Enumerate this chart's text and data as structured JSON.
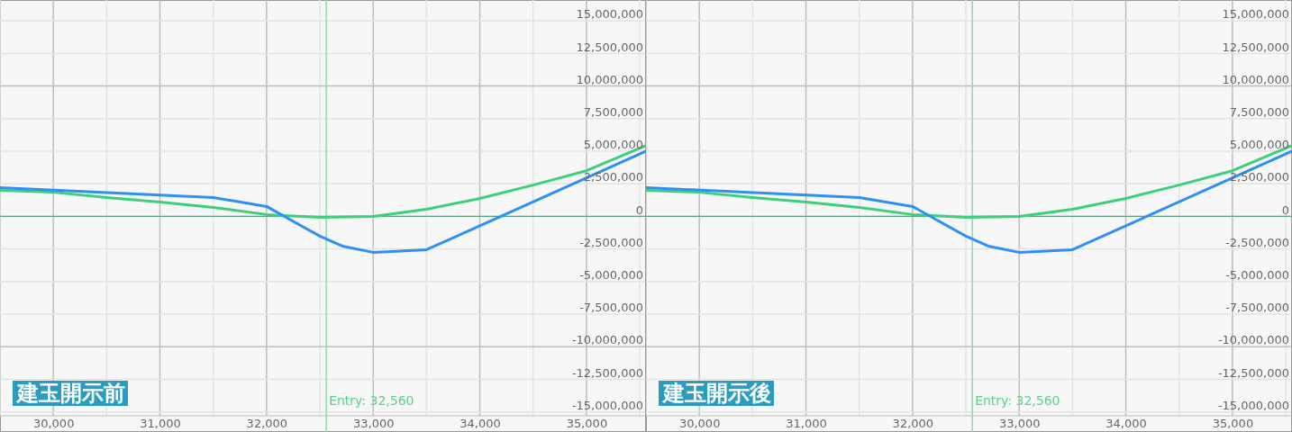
{
  "chart_data": [
    {
      "type": "line",
      "title": "建玉開示前",
      "xlim": [
        29500,
        35550
      ],
      "ylim": [
        -15300000,
        16600000
      ],
      "xticks": [
        {
          "value": 29500,
          "label": null
        },
        {
          "value": 30000,
          "label": "30,000"
        },
        {
          "value": 30500,
          "label": null
        },
        {
          "value": 31000,
          "label": "31,000"
        },
        {
          "value": 31500,
          "label": null
        },
        {
          "value": 32000,
          "label": "32,000"
        },
        {
          "value": 32500,
          "label": null
        },
        {
          "value": 33000,
          "label": "33,000"
        },
        {
          "value": 33500,
          "label": null
        },
        {
          "value": 34000,
          "label": "34,000"
        },
        {
          "value": 34500,
          "label": null
        },
        {
          "value": 35000,
          "label": "35,000"
        },
        {
          "value": 35500,
          "label": null
        }
      ],
      "yticks": [
        {
          "value": -15000000,
          "label": "-15,000,000"
        },
        {
          "value": -12500000,
          "label": "-12,500,000"
        },
        {
          "value": -10000000,
          "label": "-10,000,000"
        },
        {
          "value": -7500000,
          "label": "-7,500,000"
        },
        {
          "value": -5000000,
          "label": "-5,000,000"
        },
        {
          "value": -2500000,
          "label": "-2,500,000"
        },
        0,
        {
          "value": 2500000,
          "label": "2,500,000"
        },
        {
          "value": 5000000,
          "label": "5,000,000"
        },
        {
          "value": 7500000,
          "label": "7,500,000"
        },
        {
          "value": 10000000,
          "label": "10,000,000"
        },
        {
          "value": 12500000,
          "label": "12,500,000"
        },
        {
          "value": 15000000,
          "label": "15,000,000"
        }
      ],
      "grid": true,
      "ref_lines": [
        {
          "axis": "x",
          "value": 32560,
          "label": "Entry: 32,560",
          "color": "#8fdca8"
        },
        {
          "axis": "y",
          "value": 0,
          "color": "#5f9d7c"
        }
      ],
      "series": [
        {
          "color": "#3ecf7a",
          "x": [
            29500,
            30000,
            30500,
            31000,
            31500,
            32000,
            32500,
            33000,
            33500,
            34000,
            34500,
            35000,
            35550
          ],
          "values": [
            2000000,
            1850000,
            1450000,
            1100000,
            690000,
            140000,
            -70000,
            0,
            550000,
            1380000,
            2400000,
            3500000,
            5400000
          ]
        },
        {
          "color": "#2e90f5",
          "x": [
            29500,
            31500,
            32000,
            32500,
            32710,
            33000,
            33500,
            35550
          ],
          "values": [
            2200000,
            1450000,
            760000,
            -1520000,
            -2280000,
            -2760000,
            -2560000,
            4970000
          ]
        }
      ]
    },
    {
      "type": "line",
      "title": "建玉開示後",
      "xlim": [
        29500,
        35550
      ],
      "ylim": [
        -15300000,
        16600000
      ],
      "xticks": [
        {
          "value": 29500,
          "label": null
        },
        {
          "value": 30000,
          "label": "30,000"
        },
        {
          "value": 30500,
          "label": null
        },
        {
          "value": 31000,
          "label": "31,000"
        },
        {
          "value": 31500,
          "label": null
        },
        {
          "value": 32000,
          "label": "32,000"
        },
        {
          "value": 32500,
          "label": null
        },
        {
          "value": 33000,
          "label": "33,000"
        },
        {
          "value": 33500,
          "label": null
        },
        {
          "value": 34000,
          "label": "34,000"
        },
        {
          "value": 34500,
          "label": null
        },
        {
          "value": 35000,
          "label": "35,000"
        },
        {
          "value": 35500,
          "label": null
        }
      ],
      "yticks": [
        {
          "value": -15000000,
          "label": "-15,000,000"
        },
        {
          "value": -12500000,
          "label": "-12,500,000"
        },
        {
          "value": -10000000,
          "label": "-10,000,000"
        },
        {
          "value": -7500000,
          "label": "-7,500,000"
        },
        {
          "value": -5000000,
          "label": "-5,000,000"
        },
        {
          "value": -2500000,
          "label": "-2,500,000"
        },
        0,
        {
          "value": 2500000,
          "label": "2,500,000"
        },
        {
          "value": 5000000,
          "label": "5,000,000"
        },
        {
          "value": 7500000,
          "label": "7,500,000"
        },
        {
          "value": 10000000,
          "label": "10,000,000"
        },
        {
          "value": 12500000,
          "label": "12,500,000"
        },
        {
          "value": 15000000,
          "label": "15,000,000"
        }
      ],
      "grid": true,
      "ref_lines": [
        {
          "axis": "x",
          "value": 32560,
          "label": "Entry: 32,560",
          "color": "#8fdca8"
        },
        {
          "axis": "y",
          "value": 0,
          "color": "#5f9d7c"
        }
      ],
      "series": [
        {
          "color": "#3ecf7a",
          "x": [
            29500,
            30000,
            30500,
            31000,
            31500,
            32000,
            32500,
            33000,
            33500,
            34000,
            34500,
            35000,
            35550
          ],
          "values": [
            2000000,
            1850000,
            1450000,
            1100000,
            690000,
            140000,
            -70000,
            0,
            550000,
            1380000,
            2400000,
            3500000,
            5400000
          ]
        },
        {
          "color": "#2e90f5",
          "x": [
            29500,
            31500,
            32000,
            32500,
            32710,
            33000,
            33500,
            35550
          ],
          "values": [
            2200000,
            1450000,
            760000,
            -1520000,
            -2280000,
            -2760000,
            -2560000,
            4970000
          ]
        }
      ]
    }
  ]
}
